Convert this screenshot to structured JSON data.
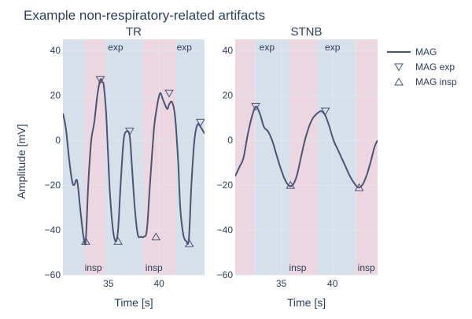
{
  "title": "Example non-respiratory-related artifacts",
  "ylabel": "Amplitude [mV]",
  "colors": {
    "line": "#4a5573",
    "exp_band": "#d5e0ea",
    "insp_band": "#ecd6df",
    "grid": "#e2e8ef",
    "text": "#2a3f5f"
  },
  "legend": {
    "position": "top-right",
    "items": [
      {
        "label": "MAG",
        "symbol": "line"
      },
      {
        "label": "MAG exp",
        "symbol": "triangle-down"
      },
      {
        "label": "MAG insp",
        "symbol": "triangle-up"
      }
    ]
  },
  "chart_data": [
    {
      "type": "line",
      "subtitle": "TR",
      "xlabel": "Time [s]",
      "xlim": [
        30.5,
        44.5
      ],
      "ylim": [
        -60,
        45
      ],
      "xticks": [
        35,
        40
      ],
      "yticks": [
        -60,
        -40,
        -20,
        0,
        20,
        40
      ],
      "grid": true,
      "bands": [
        {
          "x0": 30.5,
          "x1": 32.6,
          "phase": "exp"
        },
        {
          "x0": 32.6,
          "x1": 34.7,
          "phase": "insp"
        },
        {
          "x0": 34.7,
          "x1": 38.5,
          "phase": "exp"
        },
        {
          "x0": 38.5,
          "x1": 41.7,
          "phase": "insp"
        },
        {
          "x0": 41.7,
          "x1": 44.5,
          "phase": "exp"
        }
      ],
      "band_labels": [
        {
          "text": "exp",
          "x": 35.7,
          "pos": "top"
        },
        {
          "text": "exp",
          "x": 42.5,
          "pos": "top"
        },
        {
          "text": "insp",
          "x": 33.5,
          "pos": "bottom"
        },
        {
          "text": "insp",
          "x": 39.5,
          "pos": "bottom"
        }
      ],
      "series": [
        {
          "name": "MAG",
          "x": [
            30.5,
            30.8,
            31.1,
            31.4,
            31.6,
            31.9,
            32.2,
            32.5,
            32.75,
            33.0,
            33.3,
            33.6,
            33.9,
            34.2,
            34.4,
            34.55,
            34.8,
            35.1,
            35.4,
            35.7,
            35.95,
            36.2,
            36.5,
            36.8,
            37.1,
            37.3,
            37.6,
            37.9,
            38.2,
            38.5,
            38.8,
            39.1,
            39.5,
            39.8,
            40.1,
            40.4,
            40.8,
            41.0,
            41.3,
            41.6,
            41.9,
            42.1,
            42.4,
            42.7,
            42.95,
            43.2,
            43.5,
            43.8,
            44.1,
            44.5
          ],
          "y": [
            12,
            5,
            -8,
            -18,
            -20,
            -18,
            -30,
            -42,
            -45,
            -20,
            0,
            8,
            20,
            27,
            26,
            24,
            10,
            -20,
            -38,
            -45,
            -40,
            -20,
            0,
            4,
            2,
            -10,
            -30,
            -42,
            -43,
            -43,
            -40,
            -20,
            5,
            15,
            21,
            18,
            14,
            16,
            17,
            10,
            -10,
            -30,
            -42,
            -45,
            -44,
            -20,
            0,
            7,
            6,
            3
          ]
        }
      ],
      "exp_markers": {
        "name": "MAG exp",
        "x": [
          34.2,
          37.1,
          41.0,
          44.1
        ],
        "y": [
          27,
          4,
          21,
          8
        ]
      },
      "insp_markers": {
        "name": "MAG insp",
        "x": [
          32.75,
          35.95,
          39.7,
          43.0
        ],
        "y": [
          -45,
          -45,
          -43,
          -46
        ]
      }
    },
    {
      "type": "line",
      "subtitle": "STNB",
      "xlabel": "Time [s]",
      "xlim": [
        30.5,
        44.4
      ],
      "ylim": [
        -60,
        45
      ],
      "xticks": [
        35,
        40
      ],
      "yticks": [
        -60,
        -40,
        -20,
        0,
        20,
        40
      ],
      "grid": true,
      "bands": [
        {
          "x0": 30.5,
          "x1": 32.4,
          "phase": "insp"
        },
        {
          "x0": 32.4,
          "x1": 35.8,
          "phase": "exp"
        },
        {
          "x0": 35.8,
          "x1": 38.5,
          "phase": "insp"
        },
        {
          "x0": 38.5,
          "x1": 42.3,
          "phase": "exp"
        },
        {
          "x0": 42.3,
          "x1": 44.4,
          "phase": "insp"
        }
      ],
      "band_labels": [
        {
          "text": "exp",
          "x": 33.6,
          "pos": "top"
        },
        {
          "text": "exp",
          "x": 40.0,
          "pos": "top"
        },
        {
          "text": "insp",
          "x": 36.6,
          "pos": "bottom"
        },
        {
          "text": "insp",
          "x": 43.3,
          "pos": "bottom"
        }
      ],
      "series": [
        {
          "name": "MAG",
          "x": [
            30.5,
            30.9,
            31.3,
            31.7,
            32.1,
            32.5,
            32.9,
            33.3,
            33.7,
            34.1,
            34.5,
            34.9,
            35.3,
            35.7,
            36.1,
            36.5,
            36.9,
            37.3,
            37.7,
            38.1,
            38.5,
            38.9,
            39.3,
            39.7,
            40.1,
            40.5,
            40.9,
            41.3,
            41.7,
            42.1,
            42.5,
            42.9,
            43.3,
            43.7,
            44.1,
            44.4
          ],
          "y": [
            -16,
            -12,
            -8,
            2,
            10,
            15,
            12,
            6,
            4,
            0,
            -6,
            -12,
            -17,
            -20,
            -20,
            -16,
            -8,
            0,
            6,
            10,
            12,
            13,
            11,
            6,
            0,
            -4,
            -8,
            -12,
            -16,
            -19,
            -21,
            -20,
            -16,
            -10,
            -3,
            0
          ]
        }
      ],
      "exp_markers": {
        "name": "MAG exp",
        "x": [
          32.5,
          39.3
        ],
        "y": [
          15,
          13
        ]
      },
      "insp_markers": {
        "name": "MAG insp",
        "x": [
          35.9,
          42.6
        ],
        "y": [
          -20,
          -21
        ]
      }
    }
  ]
}
